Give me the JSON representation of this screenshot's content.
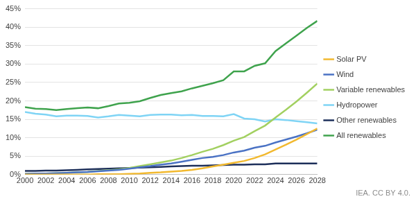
{
  "chart_data": {
    "type": "line",
    "source": "IEA. CC BY 4.0.",
    "x": [
      2000,
      2001,
      2002,
      2003,
      2004,
      2005,
      2006,
      2007,
      2008,
      2009,
      2010,
      2011,
      2012,
      2013,
      2014,
      2015,
      2016,
      2017,
      2018,
      2019,
      2020,
      2021,
      2022,
      2023,
      2024,
      2025,
      2026,
      2027,
      2028
    ],
    "xlim": [
      2000,
      2028
    ],
    "xticks": [
      2000,
      2002,
      2004,
      2006,
      2008,
      2010,
      2012,
      2014,
      2016,
      2018,
      2020,
      2022,
      2024,
      2026,
      2028
    ],
    "ylim": [
      0,
      45
    ],
    "yticks": [
      {
        "value": 0,
        "label": "0%"
      },
      {
        "value": 5,
        "label": "5%"
      },
      {
        "value": 10,
        "label": "10%"
      },
      {
        "value": 15,
        "label": "15%"
      },
      {
        "value": 20,
        "label": "20%"
      },
      {
        "value": 25,
        "label": "25%"
      },
      {
        "value": 30,
        "label": "30%"
      },
      {
        "value": 35,
        "label": "35%"
      },
      {
        "value": 40,
        "label": "40%"
      },
      {
        "value": 45,
        "label": "45%"
      }
    ],
    "grid": true,
    "legend": "right",
    "series": [
      {
        "name": "Solar PV",
        "color": "#f2b92f",
        "values": [
          0,
          0,
          0,
          0,
          0,
          0,
          0,
          0.1,
          0.1,
          0.1,
          0.2,
          0.3,
          0.5,
          0.6,
          0.8,
          1.0,
          1.3,
          1.7,
          2.2,
          2.7,
          3.2,
          3.7,
          4.5,
          5.5,
          6.8,
          8.1,
          9.5,
          11.0,
          12.5
        ]
      },
      {
        "name": "Wind",
        "color": "#4a72c4",
        "values": [
          0.2,
          0.3,
          0.3,
          0.4,
          0.5,
          0.6,
          0.7,
          0.9,
          1.1,
          1.3,
          1.6,
          2.0,
          2.3,
          2.7,
          3.0,
          3.5,
          4.0,
          4.5,
          4.8,
          5.3,
          6.0,
          6.5,
          7.3,
          7.8,
          8.7,
          9.5,
          10.3,
          11.2,
          12.2
        ]
      },
      {
        "name": "Variable renewables",
        "color": "#a2d060",
        "values": [
          0.2,
          0.3,
          0.3,
          0.4,
          0.5,
          0.6,
          0.7,
          1.0,
          1.2,
          1.4,
          1.8,
          2.3,
          2.8,
          3.3,
          3.8,
          4.5,
          5.3,
          6.2,
          7.0,
          8.0,
          9.2,
          10.2,
          11.8,
          13.3,
          15.5,
          17.6,
          19.8,
          22.2,
          24.7
        ]
      },
      {
        "name": "Hydropower",
        "color": "#7fd4f5",
        "values": [
          17.0,
          16.5,
          16.3,
          15.8,
          16.0,
          16.0,
          15.9,
          15.5,
          15.8,
          16.2,
          16.0,
          15.8,
          16.2,
          16.3,
          16.3,
          16.1,
          16.2,
          15.9,
          15.9,
          15.8,
          16.4,
          15.2,
          15.0,
          14.4,
          15.0,
          14.8,
          14.5,
          14.2,
          13.9
        ]
      },
      {
        "name": "Other renewables",
        "color": "#1d2f5a",
        "values": [
          1.0,
          1.0,
          1.1,
          1.1,
          1.2,
          1.3,
          1.4,
          1.5,
          1.6,
          1.7,
          1.8,
          1.9,
          2.0,
          2.1,
          2.2,
          2.3,
          2.4,
          2.4,
          2.5,
          2.6,
          2.7,
          2.7,
          2.8,
          2.8,
          3.0,
          3.0,
          3.0,
          3.0,
          3.0
        ]
      },
      {
        "name": "All renewables",
        "color": "#3fa34d",
        "values": [
          18.3,
          17.9,
          17.8,
          17.5,
          17.8,
          18.0,
          18.2,
          18.0,
          18.6,
          19.3,
          19.5,
          19.9,
          20.8,
          21.6,
          22.1,
          22.6,
          23.4,
          24.1,
          24.8,
          25.6,
          28.0,
          28.0,
          29.5,
          30.2,
          33.5,
          35.6,
          37.7,
          39.8,
          41.7
        ]
      }
    ]
  }
}
